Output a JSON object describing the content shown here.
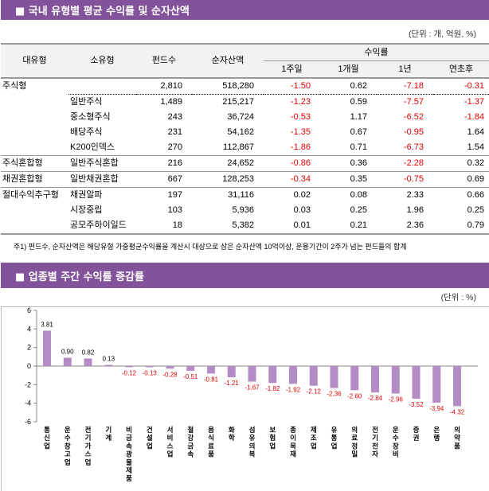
{
  "section1": {
    "title": "■ 국내 유형별 평균 수익률 및 순자산액",
    "unit": "(단위 : 개, 억원, %)"
  },
  "table": {
    "headers": {
      "major": "대유형",
      "minor": "소유형",
      "funds": "펀드수",
      "assets": "순자산액",
      "returns": "수익률",
      "w1": "1주일",
      "m1": "1개월",
      "y1": "1년",
      "ytd": "연초후"
    },
    "rows": [
      [
        "주식형",
        "",
        "2,810",
        "518,280",
        "-1.50",
        "0.62",
        "-7.18",
        "-0.31"
      ],
      [
        "",
        "일반주식",
        "1,489",
        "215,217",
        "-1.23",
        "0.59",
        "-7.57",
        "-1.37"
      ],
      [
        "",
        "중소형주식",
        "243",
        "36,724",
        "-0.53",
        "1.17",
        "-6.52",
        "-1.84"
      ],
      [
        "",
        "배당주식",
        "231",
        "54,162",
        "-1.35",
        "0.67",
        "-0.95",
        "1.64"
      ],
      [
        "",
        "K200인덱스",
        "270",
        "112,867",
        "-1.86",
        "0.71",
        "-6.73",
        "1.54"
      ],
      [
        "주식혼합형",
        "일반주식혼합",
        "216",
        "24,652",
        "-0.86",
        "0.36",
        "-2.28",
        "0.32"
      ],
      [
        "채권혼합형",
        "일반채권혼합",
        "667",
        "128,253",
        "-0.34",
        "0.35",
        "-0.75",
        "0.69"
      ],
      [
        "절대수익추구형",
        "채권알파",
        "197",
        "31,116",
        "0.02",
        "0.08",
        "2.33",
        "0.66"
      ],
      [
        "",
        "시장중립",
        "103",
        "5,936",
        "0.03",
        "0.25",
        "1.96",
        "0.25"
      ],
      [
        "",
        "공모주하이일드",
        "18",
        "5,382",
        "0.01",
        "0.21",
        "2.36",
        "0.79"
      ]
    ],
    "note": "주1) 펀드수, 순자산액은 해당유형 가중평균수익률을 계산시 대상으로 삼은 순자산액 10억이상, 운용기간이 2주가 넘는 펀드들의 합계"
  },
  "section2": {
    "title": "■ 업종별 주간 수익률 증감률",
    "unit": "(단위 : %)"
  },
  "chart_data": {
    "type": "bar",
    "title": "업종별 주간 수익률 증감률",
    "ylabel": "%",
    "ylim": [
      -6,
      6
    ],
    "yticks": [
      6,
      4,
      2,
      0,
      -2,
      -4,
      -6
    ],
    "categories": [
      "통신업",
      "운수창고업",
      "전기가스업",
      "기계",
      "비금속광물제품",
      "건설업",
      "서비스업",
      "철강금속",
      "음식료품",
      "화학",
      "섬유의복",
      "보험업",
      "종이목재",
      "제조업",
      "유통업",
      "의료정밀",
      "전기전자",
      "운수장비",
      "증권",
      "은행",
      "의약품"
    ],
    "values": [
      3.81,
      0.9,
      0.82,
      0.13,
      -0.12,
      -0.13,
      -0.28,
      -0.51,
      -0.81,
      -1.21,
      -1.67,
      -1.82,
      -1.92,
      -2.12,
      -2.36,
      -2.6,
      -2.84,
      -2.96,
      -3.52,
      -3.94,
      -4.32
    ],
    "bar_color": "#b38cc6"
  },
  "colors": {
    "header": "#82529a",
    "negative": "#e00000"
  }
}
